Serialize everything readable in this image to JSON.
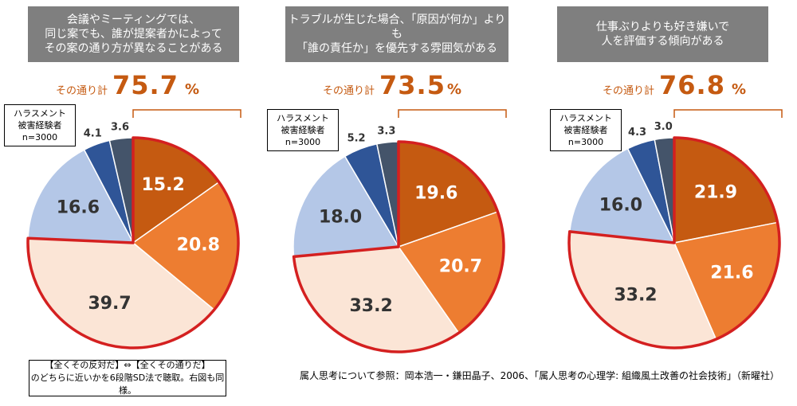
{
  "colors": {
    "header_bg": "#7f7f7f",
    "accent": "#c55a11",
    "outline": "#d42020",
    "segment_colors": [
      "#c55a11",
      "#ed7d31",
      "#fbe5d6",
      "#b4c7e7",
      "#2f5597",
      "#44546a"
    ],
    "label_dark": "#333333",
    "label_light": "#ffffff"
  },
  "total_label": "その通り計",
  "total_unit": "%",
  "legend": {
    "line1": "ハラスメント",
    "line2": "被害経験者",
    "line3": "n=3000"
  },
  "note": {
    "line1": "【全くその反対だ】⇔【全くその通りだ】",
    "line2": "のどちらに近いかを6段階SD法で聴取。右図も同様。"
  },
  "source": "属人思考について参照：岡本浩一・鎌田晶子、2006、「属人思考の心理学: 組織風土改善の社会技術」（新曜社）",
  "chart_data": [
    {
      "type": "pie",
      "title_lines": [
        "会議やミーティングでは、",
        "同じ案でも、誰が提案者かによって",
        "その案の通り方が異なることがある"
      ],
      "total": "75.7",
      "values": [
        15.2,
        20.8,
        39.7,
        16.6,
        4.1,
        3.6
      ],
      "labels": [
        "15.2",
        "20.8",
        "39.7",
        "16.6",
        "4.1",
        "3.6"
      ],
      "highlighted_segments": [
        0,
        1,
        2
      ]
    },
    {
      "type": "pie",
      "title_lines": [
        "トラブルが生じた場合、「原因が何か」よりも",
        "「誰の責任か」を優先する雰囲気がある"
      ],
      "total": "73.5",
      "values": [
        19.6,
        20.7,
        33.2,
        18.0,
        5.2,
        3.3
      ],
      "labels": [
        "19.6",
        "20.7",
        "33.2",
        "18.0",
        "5.2",
        "3.3"
      ],
      "highlighted_segments": [
        0,
        1,
        2
      ]
    },
    {
      "type": "pie",
      "title_lines": [
        "仕事ぶりよりも好き嫌いで",
        "人を評価する傾向がある"
      ],
      "total": "76.8",
      "values": [
        21.9,
        21.6,
        33.2,
        16.0,
        4.3,
        3.0
      ],
      "labels": [
        "21.9",
        "21.6",
        "33.2",
        "16.0",
        "4.3",
        "3.0"
      ],
      "highlighted_segments": [
        0,
        1,
        2
      ]
    }
  ]
}
